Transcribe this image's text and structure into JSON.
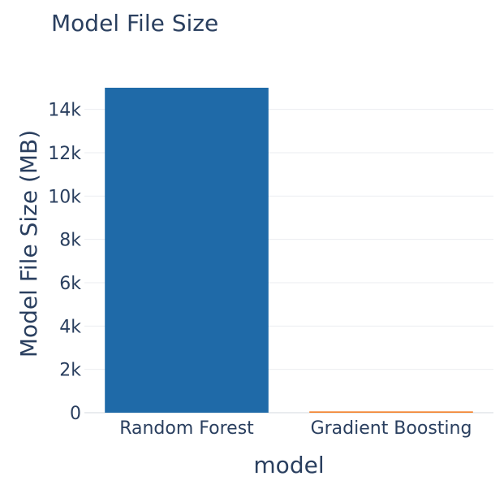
{
  "chart_data": {
    "type": "bar",
    "title": "Model File Size",
    "xlabel": "model",
    "ylabel": "Model File Size (MB)",
    "categories": [
      "Random Forest",
      "Gradient Boosting"
    ],
    "values": [
      15000,
      60
    ],
    "colors": [
      "#1f6aa8",
      "#f47b20"
    ],
    "ylim": [
      0,
      15000
    ],
    "yticks": [
      0,
      2000,
      4000,
      6000,
      8000,
      10000,
      12000,
      14000
    ],
    "ytick_labels": [
      "0",
      "2k",
      "4k",
      "6k",
      "8k",
      "10k",
      "12k",
      "14k"
    ],
    "grid": true,
    "legend": "none"
  }
}
